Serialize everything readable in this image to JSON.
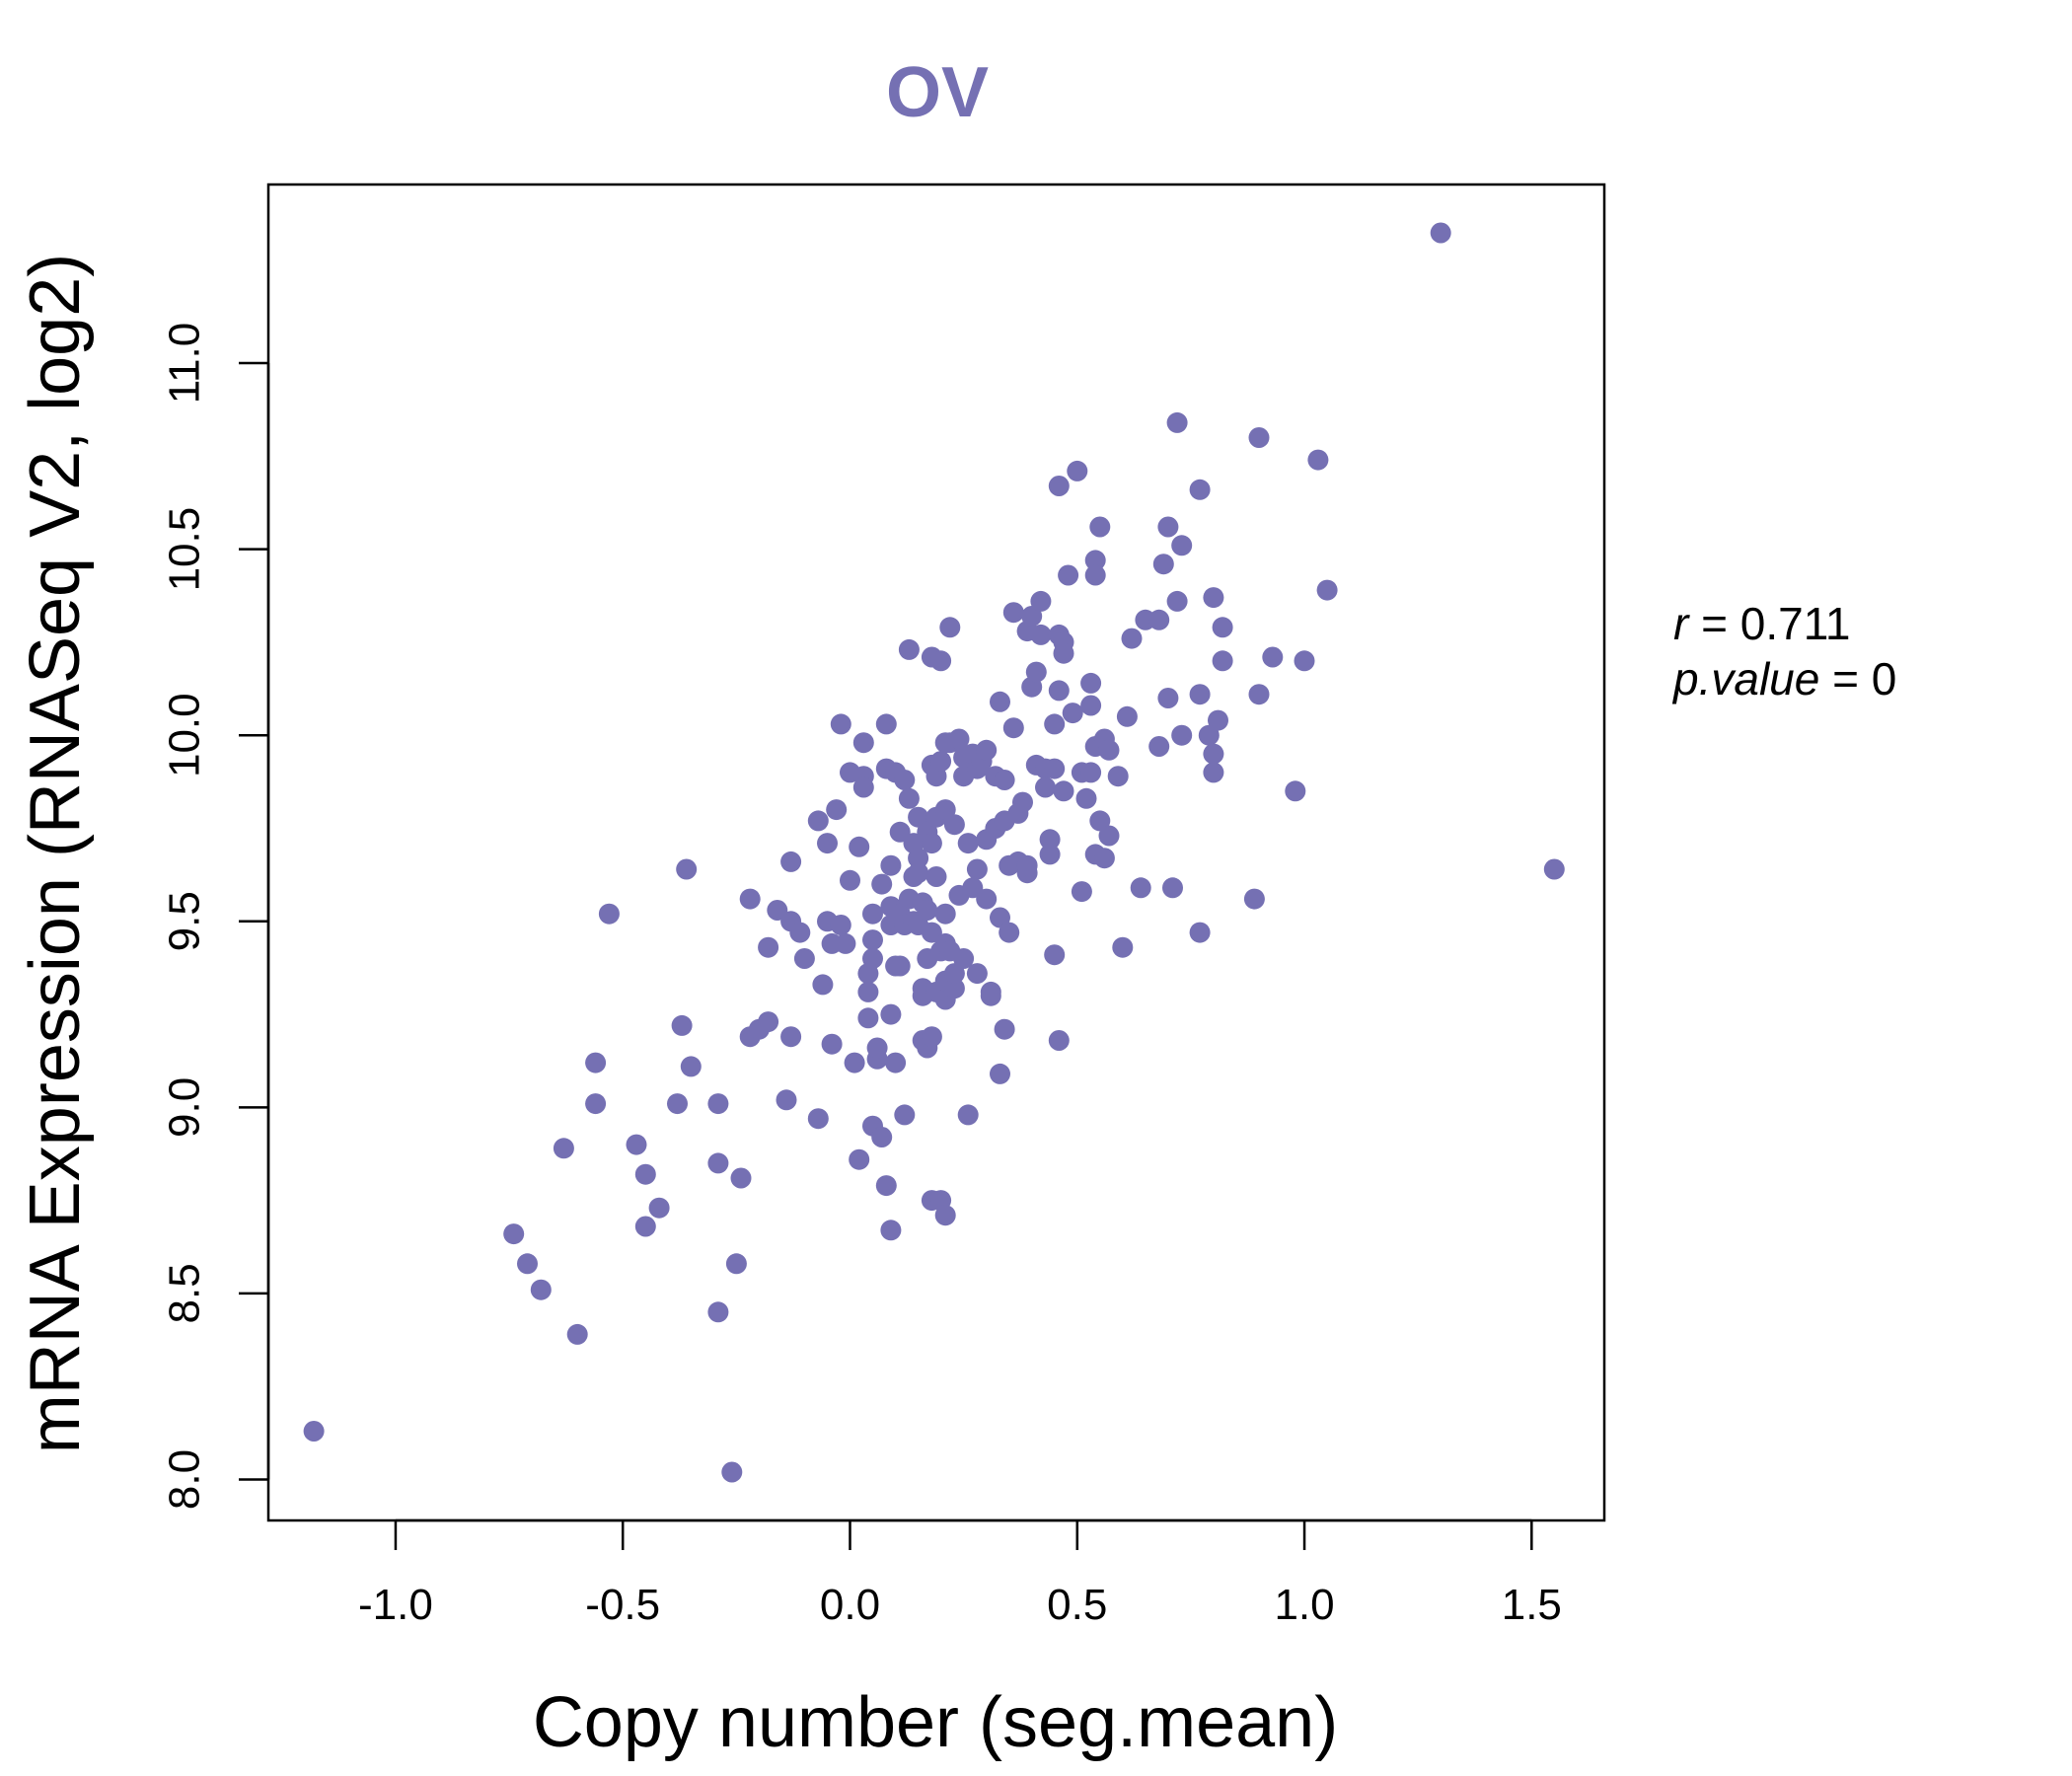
{
  "chart_data": {
    "type": "scatter",
    "title": "OV",
    "xlabel": "Copy number (seg.mean)",
    "ylabel": "mRNA Expression (RNASeq V2, log2)",
    "xlim": [
      -1.28,
      1.66
    ],
    "ylim": [
      7.89,
      11.48
    ],
    "x_ticks": [
      -1.0,
      -0.5,
      0.0,
      0.5,
      1.0,
      1.5
    ],
    "x_tick_labels": [
      "-1.0",
      "-0.5",
      "0.0",
      "0.5",
      "1.0",
      "1.5"
    ],
    "y_ticks": [
      8.0,
      8.5,
      9.0,
      9.5,
      10.0,
      10.5,
      11.0
    ],
    "y_tick_labels": [
      "8.0",
      "8.5",
      "9.0",
      "9.5",
      "10.0",
      "10.5",
      "11.0"
    ],
    "grid": false,
    "point_color": "#7570b3",
    "stats": {
      "r_label": "r",
      "r_value": "0.711",
      "p_label": "p.value",
      "p_value": "0"
    },
    "points": [
      [
        -1.18,
        8.13
      ],
      [
        -0.26,
        8.02
      ],
      [
        1.3,
        11.35
      ],
      [
        1.55,
        9.64
      ],
      [
        -0.74,
        8.66
      ],
      [
        -0.71,
        8.58
      ],
      [
        -0.68,
        8.51
      ],
      [
        -0.63,
        8.89
      ],
      [
        -0.6,
        8.39
      ],
      [
        -0.56,
        9.12
      ],
      [
        -0.56,
        9.01
      ],
      [
        -0.53,
        9.52
      ],
      [
        -0.47,
        8.9
      ],
      [
        -0.45,
        8.82
      ],
      [
        -0.45,
        8.68
      ],
      [
        -0.42,
        8.73
      ],
      [
        -0.38,
        9.01
      ],
      [
        -0.37,
        9.22
      ],
      [
        -0.36,
        9.64
      ],
      [
        -0.35,
        9.11
      ],
      [
        -0.29,
        9.01
      ],
      [
        -0.29,
        8.85
      ],
      [
        -0.29,
        8.45
      ],
      [
        -0.25,
        8.58
      ],
      [
        -0.24,
        8.81
      ],
      [
        -0.22,
        9.19
      ],
      [
        -0.22,
        9.56
      ],
      [
        -0.2,
        9.21
      ],
      [
        -0.18,
        9.43
      ],
      [
        -0.18,
        9.23
      ],
      [
        -0.16,
        9.53
      ],
      [
        -0.14,
        9.02
      ],
      [
        -0.13,
        9.5
      ],
      [
        -0.13,
        9.19
      ],
      [
        -0.13,
        9.66
      ],
      [
        -0.11,
        9.47
      ],
      [
        -0.1,
        9.4
      ],
      [
        -0.07,
        8.97
      ],
      [
        -0.07,
        9.77
      ],
      [
        -0.06,
        9.33
      ],
      [
        -0.05,
        9.71
      ],
      [
        -0.05,
        9.5
      ],
      [
        -0.04,
        9.17
      ],
      [
        -0.04,
        9.44
      ],
      [
        -0.03,
        9.8
      ],
      [
        -0.02,
        10.03
      ],
      [
        -0.02,
        9.49
      ],
      [
        -0.01,
        9.44
      ],
      [
        0.0,
        9.61
      ],
      [
        0.0,
        9.9
      ],
      [
        0.01,
        9.12
      ],
      [
        0.02,
        9.7
      ],
      [
        0.02,
        8.86
      ],
      [
        0.03,
        9.89
      ],
      [
        0.03,
        9.98
      ],
      [
        0.03,
        9.86
      ],
      [
        0.04,
        9.36
      ],
      [
        0.04,
        9.31
      ],
      [
        0.04,
        9.24
      ],
      [
        0.05,
        9.45
      ],
      [
        0.05,
        9.4
      ],
      [
        0.05,
        9.52
      ],
      [
        0.05,
        8.95
      ],
      [
        0.06,
        9.13
      ],
      [
        0.06,
        9.16
      ],
      [
        0.07,
        9.6
      ],
      [
        0.07,
        8.92
      ],
      [
        0.08,
        10.03
      ],
      [
        0.08,
        9.91
      ],
      [
        0.08,
        8.79
      ],
      [
        0.09,
        9.25
      ],
      [
        0.09,
        9.54
      ],
      [
        0.09,
        9.49
      ],
      [
        0.09,
        9.65
      ],
      [
        0.09,
        8.67
      ],
      [
        0.1,
        9.9
      ],
      [
        0.1,
        9.38
      ],
      [
        0.1,
        9.12
      ],
      [
        0.11,
        9.52
      ],
      [
        0.11,
        9.74
      ],
      [
        0.11,
        9.38
      ],
      [
        0.12,
        8.98
      ],
      [
        0.12,
        9.49
      ],
      [
        0.12,
        9.88
      ],
      [
        0.13,
        10.23
      ],
      [
        0.13,
        9.83
      ],
      [
        0.13,
        9.56
      ],
      [
        0.14,
        9.62
      ],
      [
        0.14,
        9.71
      ],
      [
        0.14,
        9.5
      ],
      [
        0.15,
        9.67
      ],
      [
        0.15,
        9.78
      ],
      [
        0.15,
        9.63
      ],
      [
        0.15,
        9.49
      ],
      [
        0.16,
        9.55
      ],
      [
        0.16,
        9.32
      ],
      [
        0.16,
        9.3
      ],
      [
        0.16,
        9.18
      ],
      [
        0.17,
        9.53
      ],
      [
        0.17,
        9.4
      ],
      [
        0.17,
        9.16
      ],
      [
        0.17,
        9.74
      ],
      [
        0.18,
        9.71
      ],
      [
        0.18,
        10.21
      ],
      [
        0.18,
        9.92
      ],
      [
        0.18,
        9.19
      ],
      [
        0.18,
        9.47
      ],
      [
        0.18,
        8.75
      ],
      [
        0.19,
        9.89
      ],
      [
        0.19,
        9.78
      ],
      [
        0.19,
        9.31
      ],
      [
        0.19,
        9.62
      ],
      [
        0.2,
        10.2
      ],
      [
        0.2,
        9.42
      ],
      [
        0.2,
        9.93
      ],
      [
        0.2,
        8.75
      ],
      [
        0.21,
        9.98
      ],
      [
        0.21,
        9.8
      ],
      [
        0.21,
        9.52
      ],
      [
        0.21,
        9.44
      ],
      [
        0.21,
        9.29
      ],
      [
        0.21,
        9.34
      ],
      [
        0.21,
        8.71
      ],
      [
        0.22,
        10.29
      ],
      [
        0.22,
        9.98
      ],
      [
        0.22,
        9.42
      ],
      [
        0.23,
        9.76
      ],
      [
        0.23,
        9.32
      ],
      [
        0.23,
        9.36
      ],
      [
        0.24,
        9.99
      ],
      [
        0.24,
        9.57
      ],
      [
        0.25,
        9.94
      ],
      [
        0.25,
        9.4
      ],
      [
        0.25,
        9.89
      ],
      [
        0.26,
        9.71
      ],
      [
        0.26,
        8.98
      ],
      [
        0.27,
        9.59
      ],
      [
        0.27,
        9.95
      ],
      [
        0.28,
        9.91
      ],
      [
        0.28,
        9.64
      ],
      [
        0.28,
        9.36
      ],
      [
        0.29,
        9.93
      ],
      [
        0.3,
        9.72
      ],
      [
        0.3,
        9.96
      ],
      [
        0.3,
        9.56
      ],
      [
        0.31,
        9.31
      ],
      [
        0.31,
        9.3
      ],
      [
        0.32,
        9.89
      ],
      [
        0.32,
        9.75
      ],
      [
        0.33,
        9.51
      ],
      [
        0.33,
        10.09
      ],
      [
        0.33,
        9.09
      ],
      [
        0.34,
        9.77
      ],
      [
        0.34,
        9.21
      ],
      [
        0.34,
        9.88
      ],
      [
        0.35,
        9.65
      ],
      [
        0.35,
        9.47
      ],
      [
        0.36,
        10.33
      ],
      [
        0.36,
        10.02
      ],
      [
        0.37,
        9.66
      ],
      [
        0.37,
        9.79
      ],
      [
        0.38,
        9.82
      ],
      [
        0.39,
        10.28
      ],
      [
        0.39,
        9.63
      ],
      [
        0.39,
        9.65
      ],
      [
        0.4,
        10.13
      ],
      [
        0.4,
        10.32
      ],
      [
        0.41,
        10.17
      ],
      [
        0.41,
        9.92
      ],
      [
        0.42,
        10.36
      ],
      [
        0.42,
        10.27
      ],
      [
        0.43,
        9.91
      ],
      [
        0.43,
        9.86
      ],
      [
        0.44,
        9.72
      ],
      [
        0.44,
        9.68
      ],
      [
        0.45,
        10.03
      ],
      [
        0.45,
        9.91
      ],
      [
        0.45,
        9.41
      ],
      [
        0.46,
        10.67
      ],
      [
        0.46,
        10.27
      ],
      [
        0.46,
        9.18
      ],
      [
        0.46,
        10.12
      ],
      [
        0.47,
        10.25
      ],
      [
        0.47,
        9.85
      ],
      [
        0.47,
        10.22
      ],
      [
        0.48,
        10.43
      ],
      [
        0.49,
        10.06
      ],
      [
        0.5,
        10.71
      ],
      [
        0.51,
        9.9
      ],
      [
        0.51,
        9.58
      ],
      [
        0.52,
        9.83
      ],
      [
        0.53,
        10.14
      ],
      [
        0.53,
        10.08
      ],
      [
        0.53,
        9.9
      ],
      [
        0.54,
        10.47
      ],
      [
        0.54,
        10.43
      ],
      [
        0.54,
        9.68
      ],
      [
        0.54,
        9.97
      ],
      [
        0.55,
        10.56
      ],
      [
        0.55,
        9.77
      ],
      [
        0.56,
        9.99
      ],
      [
        0.56,
        9.67
      ],
      [
        0.57,
        9.73
      ],
      [
        0.57,
        9.96
      ],
      [
        0.59,
        9.89
      ],
      [
        0.6,
        9.43
      ],
      [
        0.61,
        10.05
      ],
      [
        0.62,
        10.26
      ],
      [
        0.64,
        9.59
      ],
      [
        0.65,
        10.31
      ],
      [
        0.68,
        9.97
      ],
      [
        0.68,
        10.31
      ],
      [
        0.69,
        10.46
      ],
      [
        0.7,
        10.56
      ],
      [
        0.7,
        10.1
      ],
      [
        0.71,
        9.59
      ],
      [
        0.72,
        10.84
      ],
      [
        0.72,
        10.36
      ],
      [
        0.73,
        10.51
      ],
      [
        0.73,
        10.0
      ],
      [
        0.77,
        10.66
      ],
      [
        0.77,
        10.11
      ],
      [
        0.77,
        9.47
      ],
      [
        0.79,
        10.0
      ],
      [
        0.8,
        9.95
      ],
      [
        0.8,
        10.37
      ],
      [
        0.8,
        9.9
      ],
      [
        0.81,
        10.04
      ],
      [
        0.82,
        10.2
      ],
      [
        0.82,
        10.29
      ],
      [
        0.89,
        9.56
      ],
      [
        0.9,
        10.8
      ],
      [
        0.9,
        10.11
      ],
      [
        0.93,
        10.21
      ],
      [
        0.98,
        9.85
      ],
      [
        1.0,
        10.2
      ],
      [
        1.03,
        10.74
      ],
      [
        1.05,
        10.39
      ]
    ]
  }
}
